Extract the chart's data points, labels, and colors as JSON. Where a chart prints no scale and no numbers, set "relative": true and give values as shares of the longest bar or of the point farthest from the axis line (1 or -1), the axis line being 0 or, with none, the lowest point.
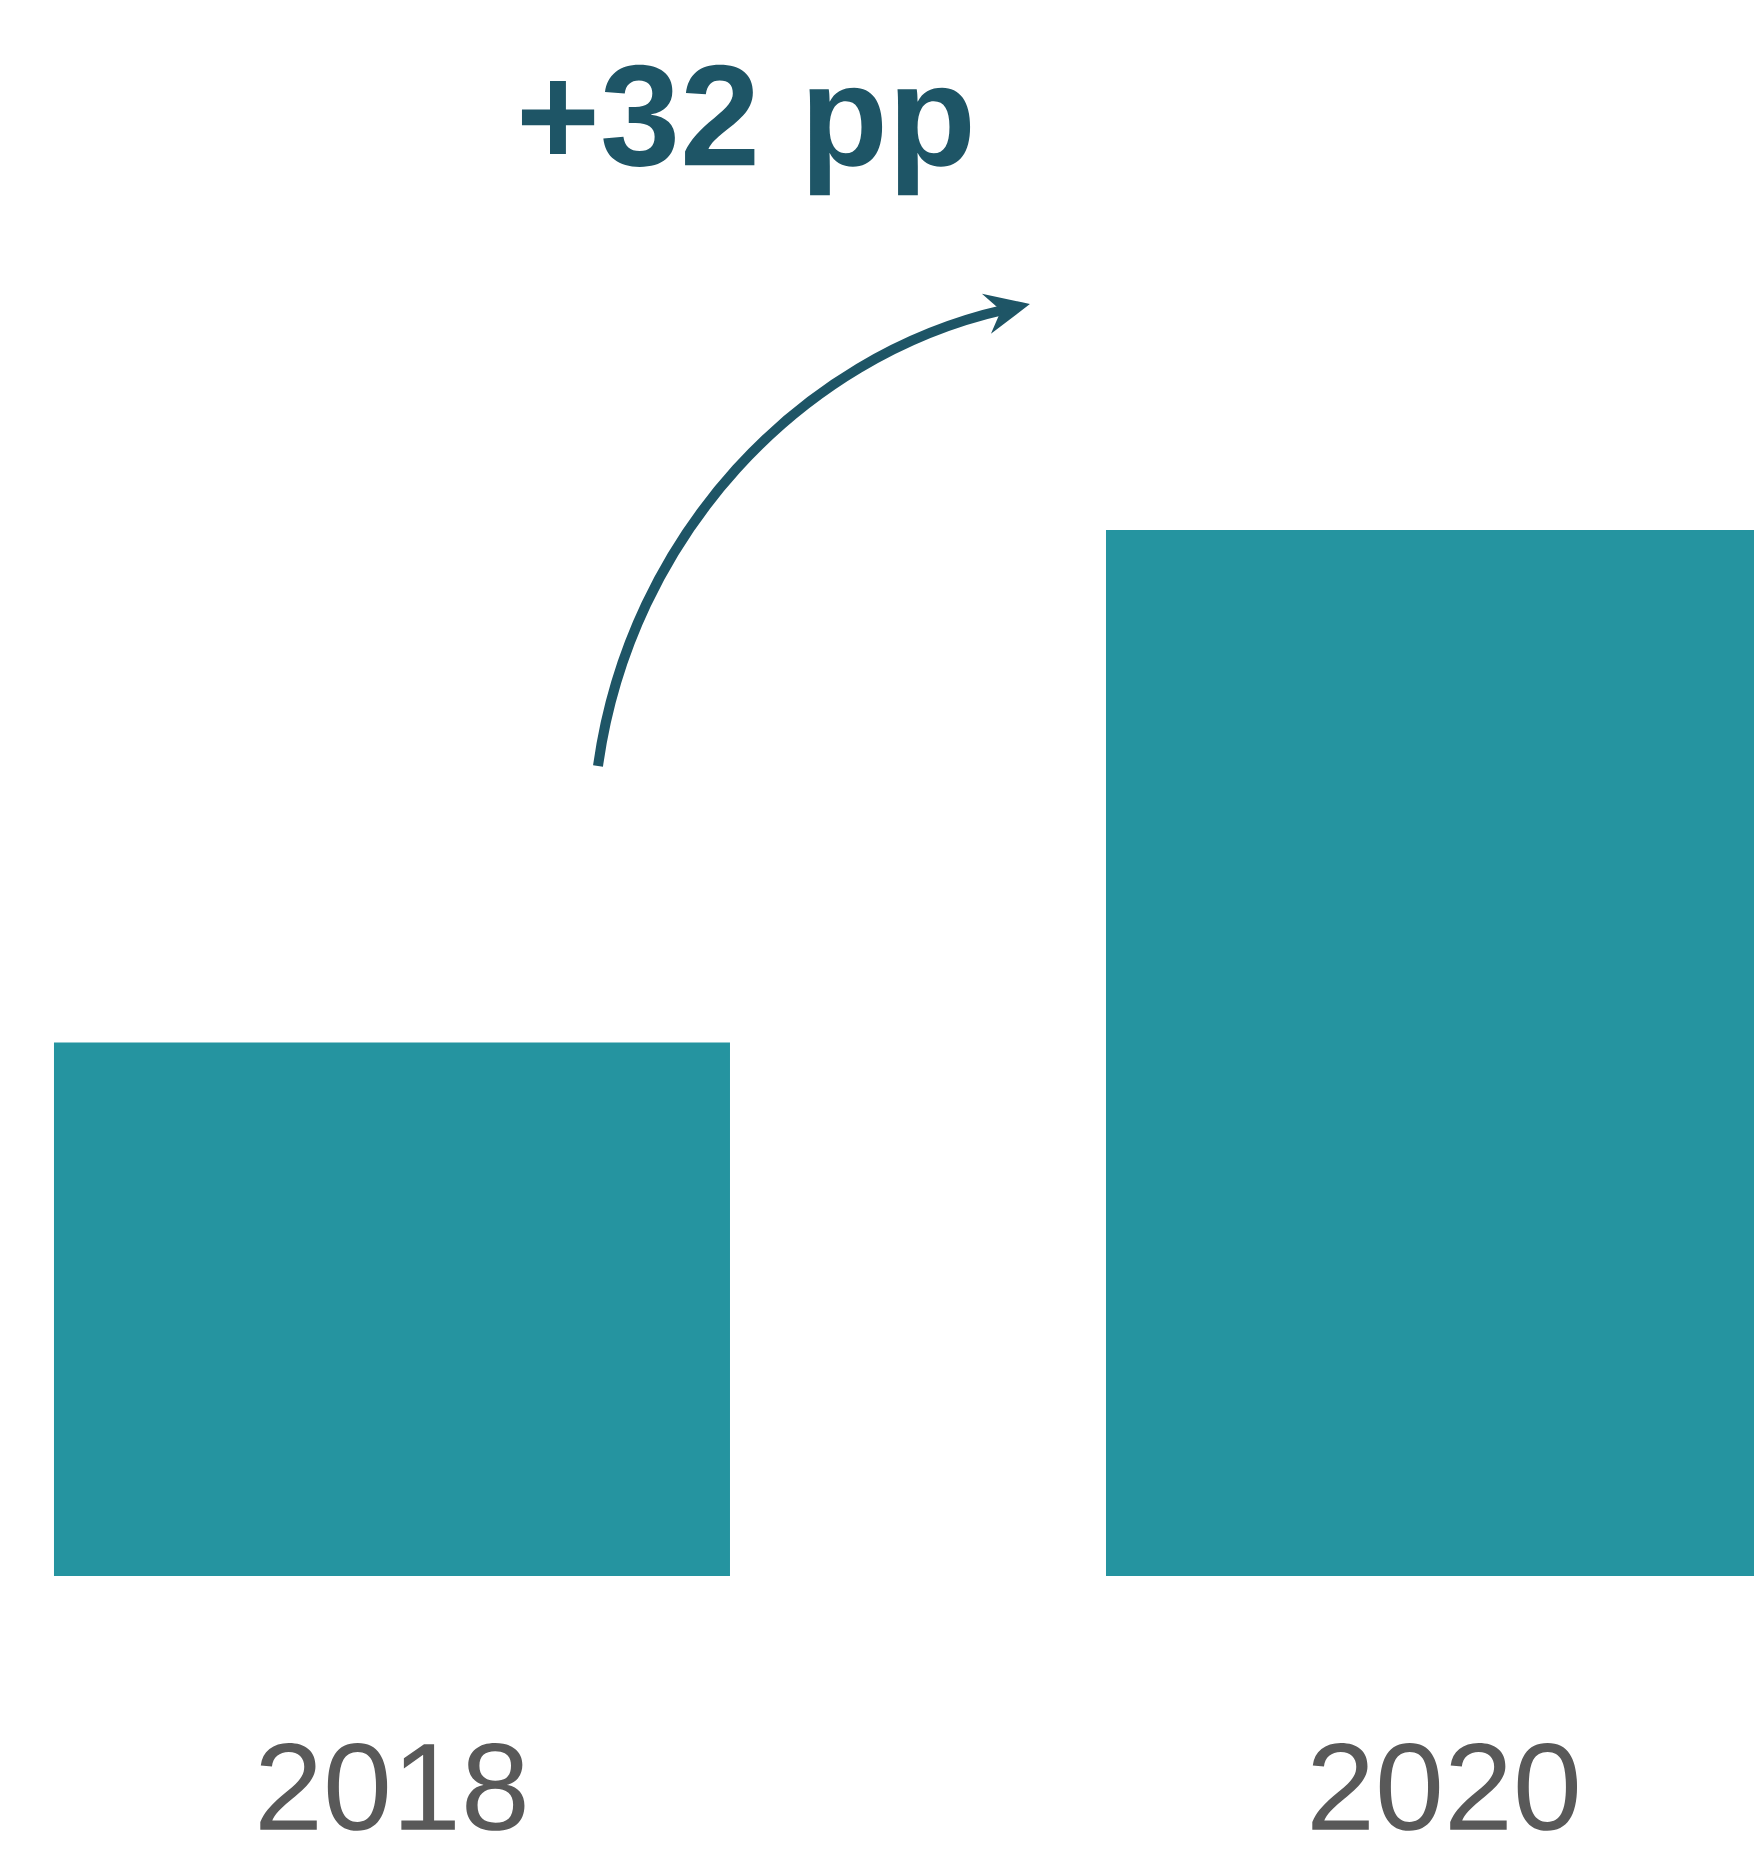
{
  "chart_data": {
    "type": "bar",
    "categories": [
      "2018",
      "2020"
    ],
    "values": [
      0.51,
      1
    ],
    "relative": true,
    "color": "#2594a0",
    "annotations": [
      "+32 pp"
    ]
  }
}
